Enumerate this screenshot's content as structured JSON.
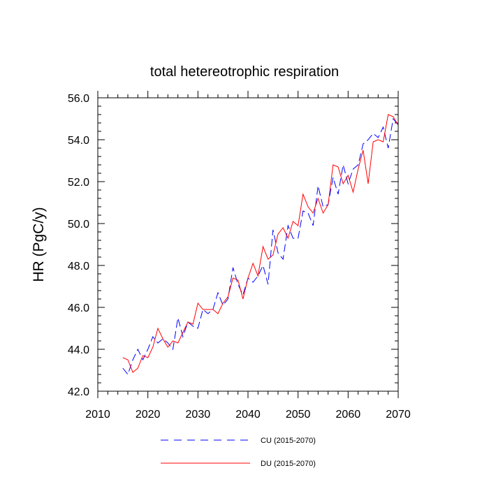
{
  "chart_data": {
    "type": "line",
    "title": "total hetereotrophic respiration",
    "xlabel": "",
    "ylabel": "HR  (PgC/y)",
    "xlim": [
      2010,
      2070
    ],
    "ylim": [
      42,
      56
    ],
    "xticks": [
      2010,
      2020,
      2030,
      2040,
      2050,
      2060,
      2070
    ],
    "yticks": [
      42,
      44,
      46,
      48,
      50,
      52,
      54,
      56
    ],
    "xtick_labels": [
      "2010",
      "2020",
      "2030",
      "2040",
      "2050",
      "2060",
      "2070"
    ],
    "ytick_labels": [
      "42.0",
      "44.0",
      "46.0",
      "48.0",
      "50.0",
      "52.0",
      "54.0",
      "56.0"
    ],
    "grid": false,
    "legend_position": "bottom",
    "x": [
      2015,
      2016,
      2017,
      2018,
      2019,
      2020,
      2021,
      2022,
      2023,
      2024,
      2025,
      2026,
      2027,
      2028,
      2029,
      2030,
      2031,
      2032,
      2033,
      2034,
      2035,
      2036,
      2037,
      2038,
      2039,
      2040,
      2041,
      2042,
      2043,
      2044,
      2045,
      2046,
      2047,
      2048,
      2049,
      2050,
      2051,
      2052,
      2053,
      2054,
      2055,
      2056,
      2057,
      2058,
      2059,
      2060,
      2061,
      2062,
      2063,
      2064,
      2065,
      2066,
      2067,
      2068,
      2069,
      2070
    ],
    "series": [
      {
        "name": "CU (2015-2070)",
        "color": "#0000ff",
        "dash": "dashed",
        "values": [
          43.1,
          42.8,
          43.5,
          44.0,
          43.5,
          44.0,
          44.6,
          44.3,
          44.5,
          44.3,
          44.0,
          45.5,
          44.6,
          45.3,
          45.1,
          45.0,
          45.9,
          45.7,
          45.9,
          46.7,
          46.1,
          46.4,
          47.9,
          47.1,
          46.6,
          47.4,
          47.2,
          47.5,
          48.0,
          47.1,
          49.7,
          48.6,
          48.3,
          49.9,
          49.3,
          49.3,
          50.6,
          50.5,
          49.9,
          51.8,
          50.8,
          50.9,
          52.2,
          51.4,
          52.8,
          51.9,
          52.6,
          52.8,
          53.8,
          54.0,
          54.3,
          54.1,
          54.6,
          53.6,
          55.0,
          54.7
        ]
      },
      {
        "name": "DU (2015-2070)",
        "color": "#ff0000",
        "dash": "solid",
        "values": [
          43.6,
          43.5,
          42.9,
          43.1,
          43.7,
          43.6,
          44.1,
          45.0,
          44.5,
          44.1,
          44.4,
          44.3,
          44.8,
          45.3,
          45.2,
          46.2,
          45.9,
          45.9,
          45.9,
          45.7,
          46.2,
          46.5,
          47.4,
          47.3,
          46.4,
          47.4,
          48.1,
          47.5,
          48.9,
          48.3,
          48.5,
          49.5,
          49.8,
          49.3,
          50.1,
          49.9,
          51.4,
          50.8,
          50.5,
          51.2,
          50.5,
          50.9,
          52.8,
          52.7,
          51.9,
          52.3,
          51.5,
          52.6,
          53.5,
          51.9,
          53.9,
          54.0,
          53.9,
          55.2,
          55.1,
          54.7
        ]
      }
    ]
  }
}
